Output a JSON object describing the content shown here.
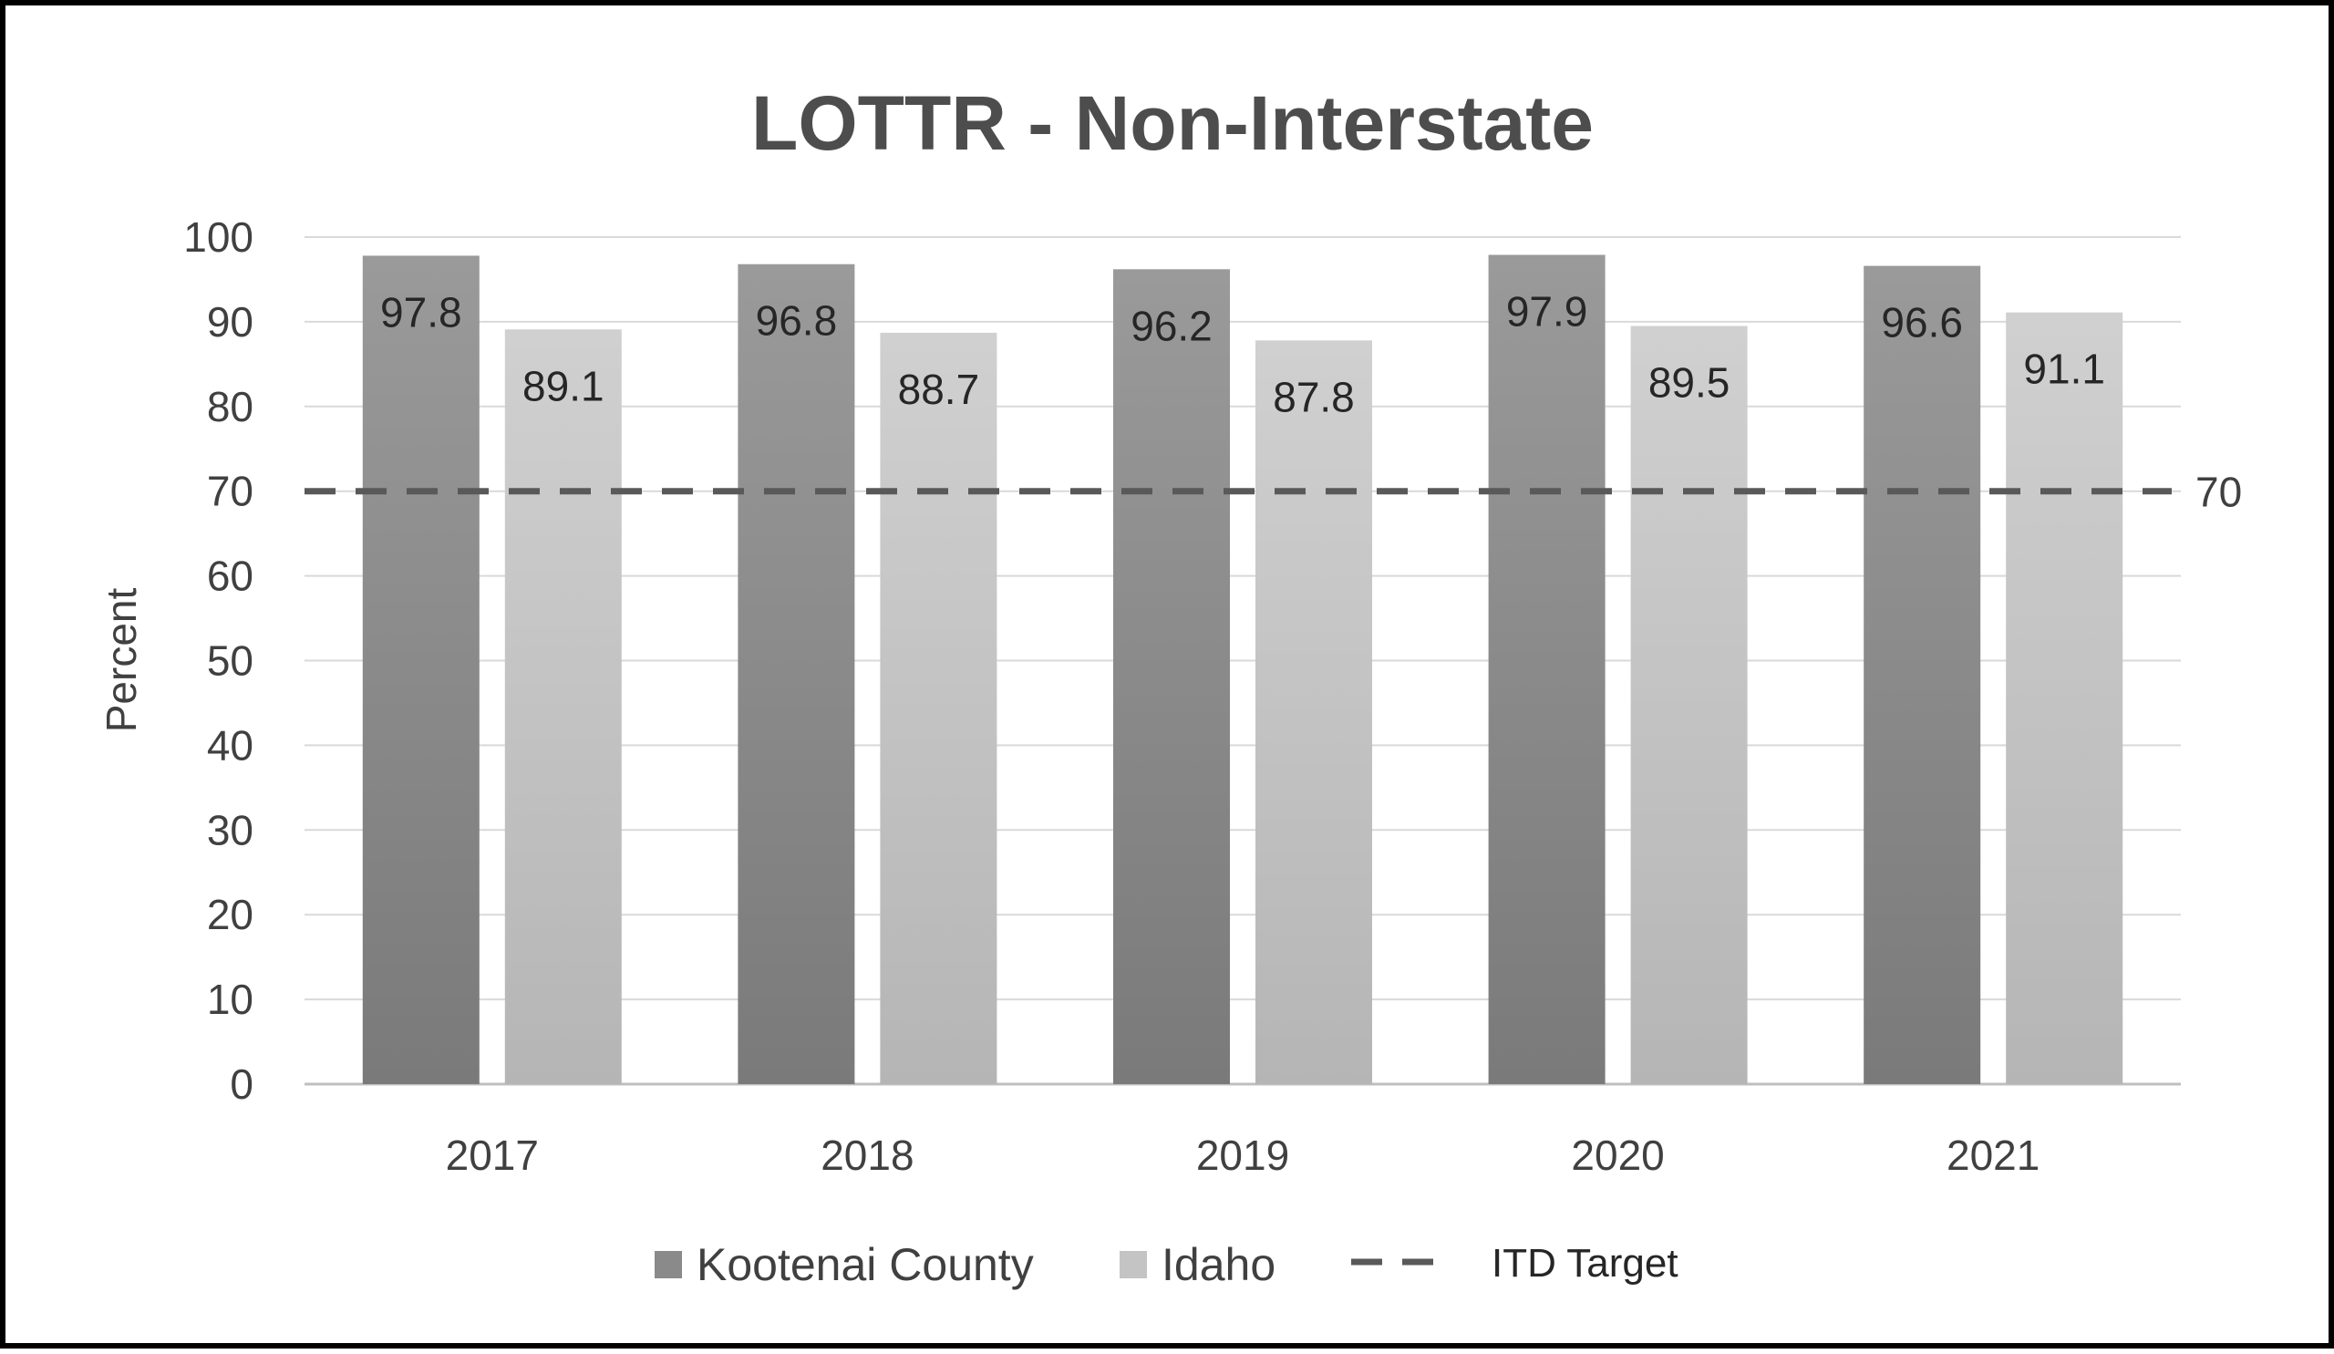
{
  "chart_data": {
    "type": "bar",
    "title": "LOTTR - Non-Interstate",
    "xlabel": "",
    "ylabel": "Percent",
    "categories": [
      "2017",
      "2018",
      "2019",
      "2020",
      "2021"
    ],
    "series": [
      {
        "name": "Kootenai County",
        "values": [
          97.8,
          96.8,
          96.2,
          97.9,
          96.6
        ],
        "color": "#8a8a8a"
      },
      {
        "name": "Idaho",
        "values": [
          89.1,
          88.7,
          87.8,
          89.5,
          91.1
        ],
        "color": "#c4c4c4"
      }
    ],
    "reference_line": {
      "name": "ITD Target",
      "value": 70,
      "label": "70",
      "style": "dashed",
      "color": "#595959"
    },
    "ylim": [
      0,
      100
    ],
    "yticks": [
      "0",
      "10",
      "20",
      "30",
      "40",
      "50",
      "60",
      "70",
      "80",
      "90",
      "100"
    ],
    "grid": true,
    "legend_position": "bottom"
  }
}
